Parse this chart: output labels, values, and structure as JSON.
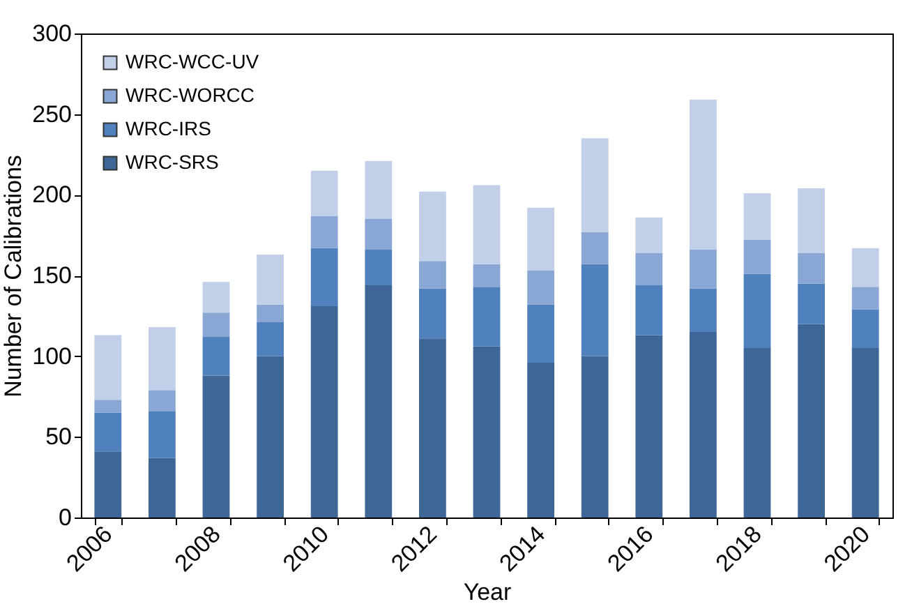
{
  "chart_data": {
    "type": "bar",
    "stacked": true,
    "xlabel": "Year",
    "ylabel": "Number of Calibrations",
    "categories": [
      "2006",
      null,
      "2008",
      null,
      "2010",
      null,
      "2012",
      null,
      "2014",
      null,
      "2016",
      null,
      "2018",
      null,
      "2020"
    ],
    "series": [
      {
        "name": "WRC-SRS",
        "color": "#3e6697",
        "values": [
          41,
          37,
          88,
          100,
          131,
          144,
          111,
          106,
          96,
          100,
          113,
          115,
          105,
          120,
          105
        ]
      },
      {
        "name": "WRC-IRS",
        "color": "#4f81bd",
        "values": [
          24,
          29,
          24,
          21,
          36,
          22,
          31,
          37,
          36,
          57,
          31,
          27,
          46,
          25,
          24
        ]
      },
      {
        "name": "WRC-WORCC",
        "color": "#8aa6d4",
        "values": [
          8,
          13,
          15,
          11,
          20,
          19,
          17,
          14,
          21,
          20,
          20,
          24,
          21,
          19,
          14
        ]
      },
      {
        "name": "WRC-WCC-UV",
        "color": "#c2cfe8",
        "values": [
          40,
          39,
          19,
          31,
          28,
          36,
          43,
          49,
          39,
          58,
          22,
          93,
          29,
          40,
          24
        ]
      }
    ],
    "ylim": [
      0,
      300
    ],
    "yticks": [
      0,
      50,
      100,
      150,
      200,
      250,
      300
    ],
    "grid": false,
    "legend": "top left"
  }
}
